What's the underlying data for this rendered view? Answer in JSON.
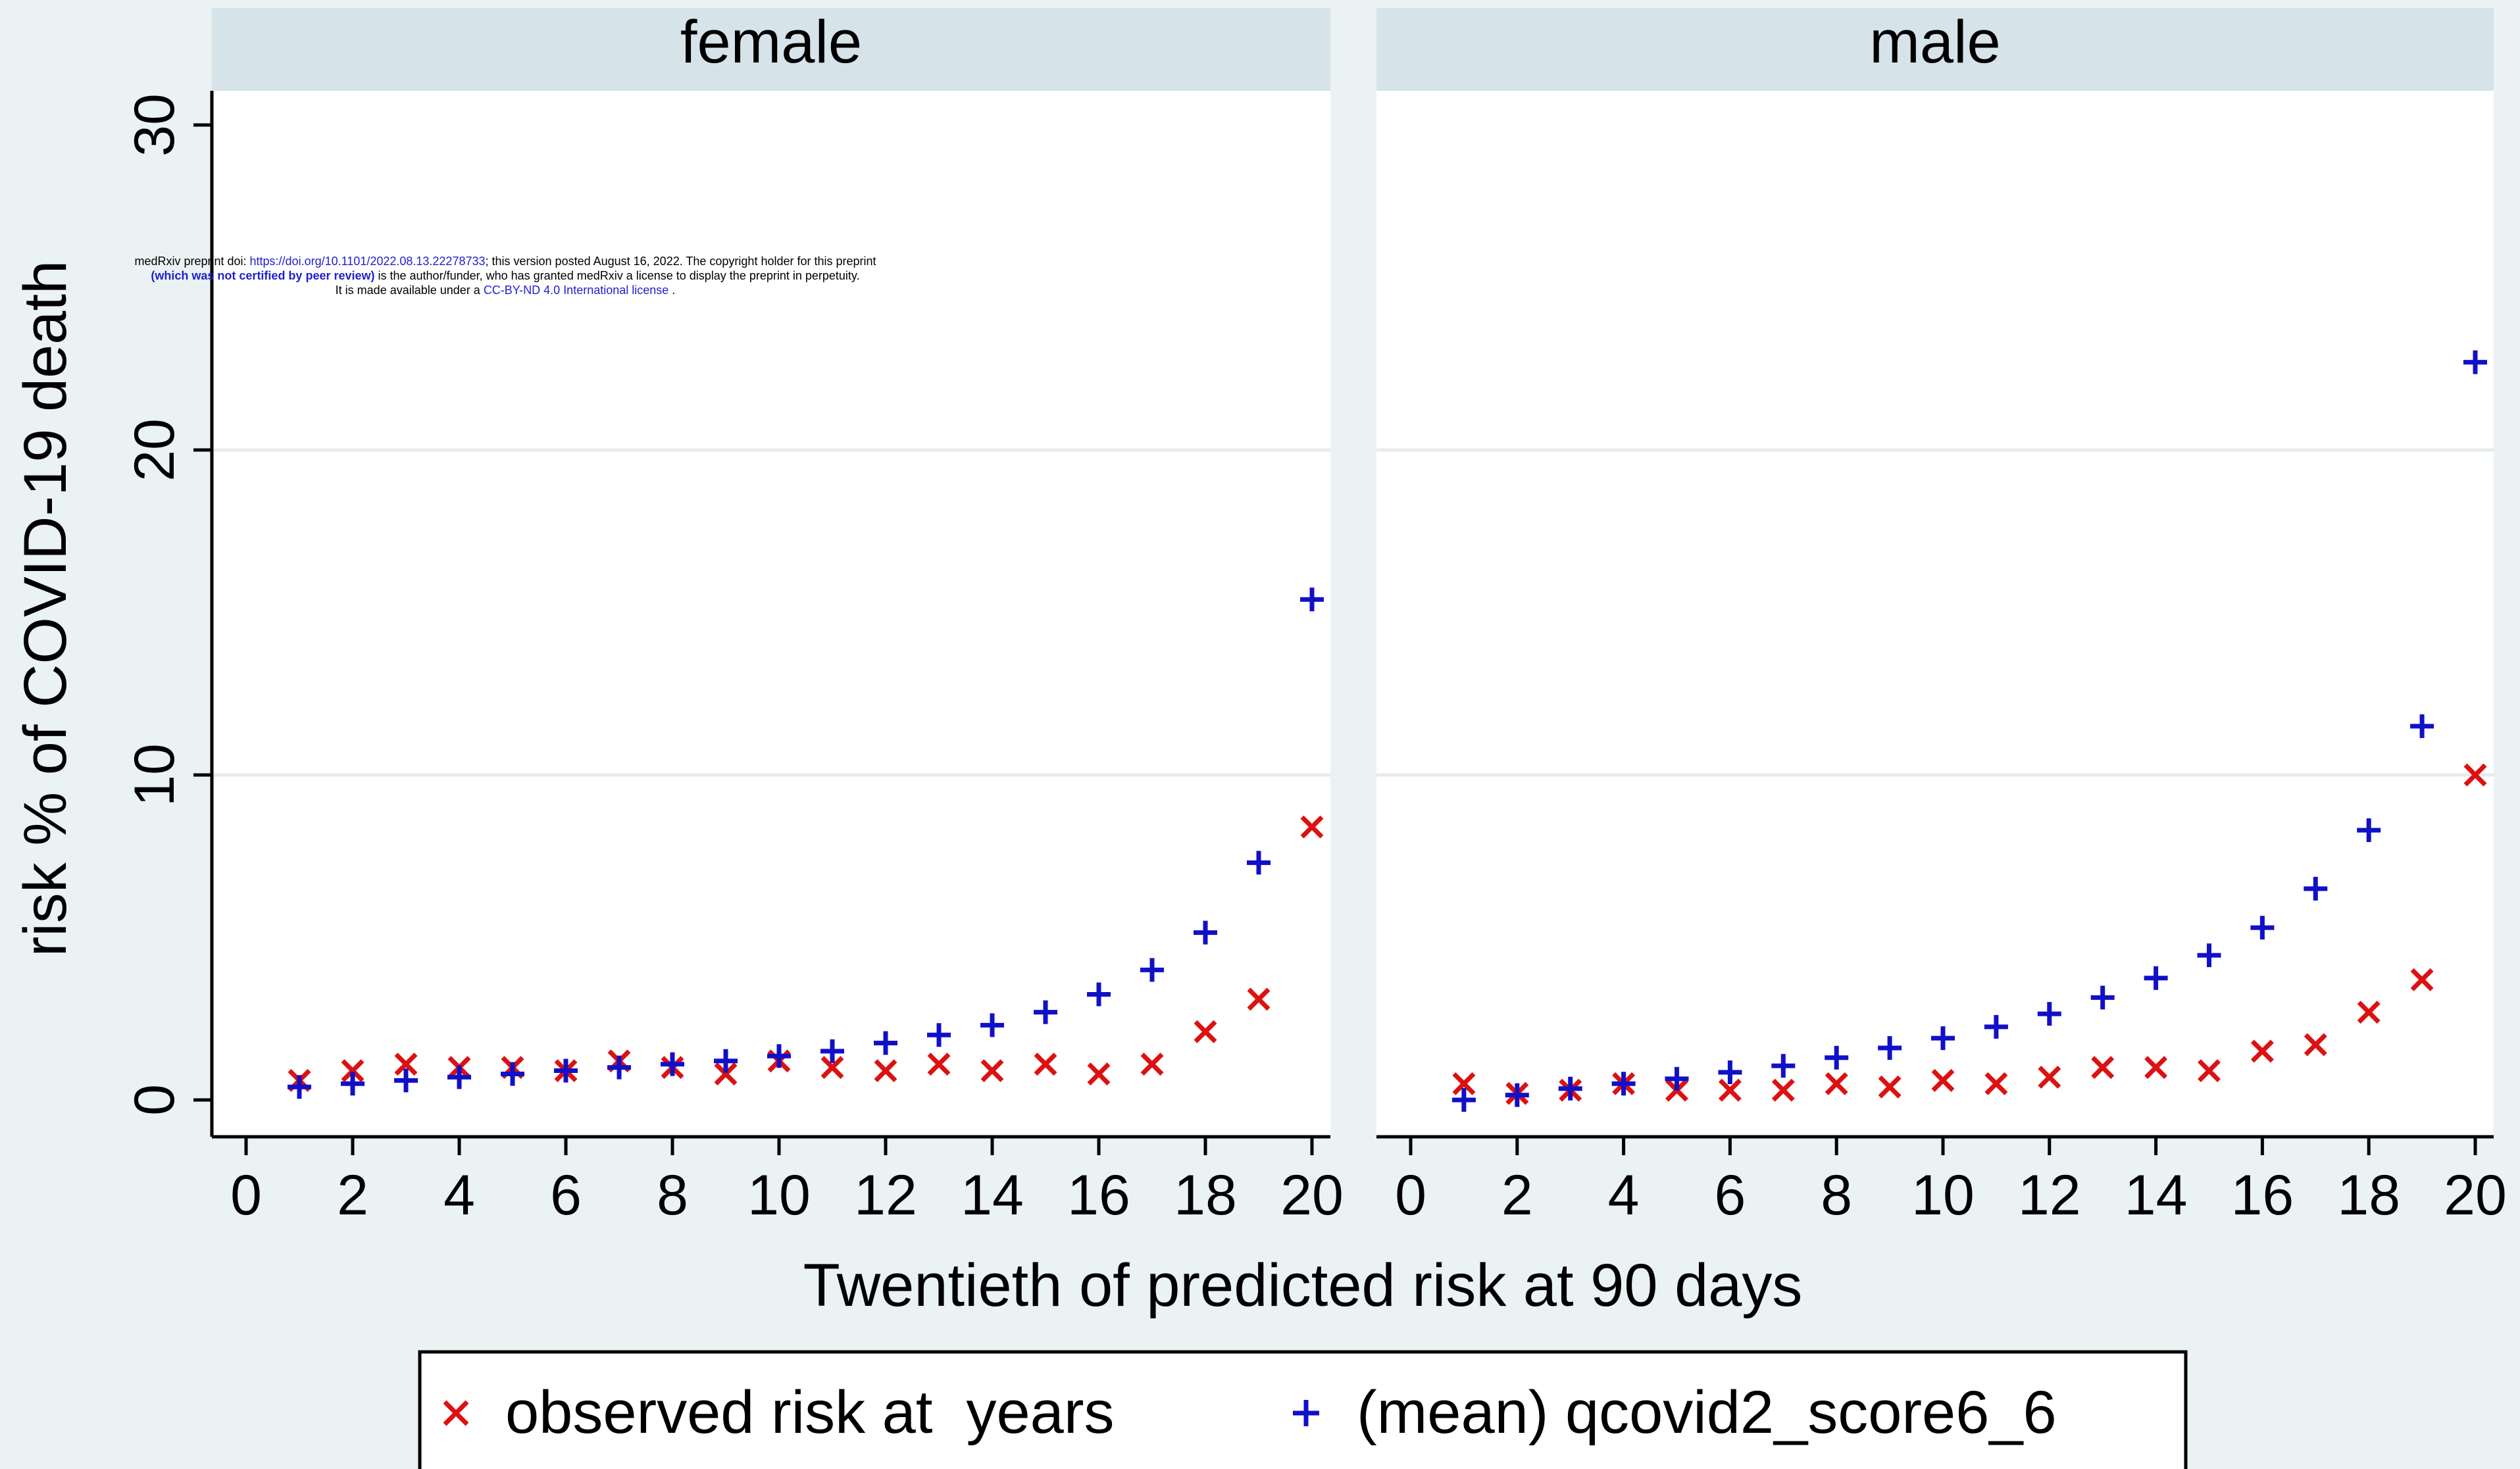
{
  "chart_data": {
    "type": "scatter",
    "ylabel": "risk % of COVID-19 death",
    "xlabel": "Twentieth of predicted risk at 90 days",
    "xlim": [
      0,
      20
    ],
    "ylim": [
      0,
      30
    ],
    "x_ticks": [
      "0",
      "2",
      "4",
      "6",
      "8",
      "10",
      "12",
      "14",
      "16",
      "18",
      "20"
    ],
    "y_ticks": [
      "0",
      "10",
      "20",
      "30"
    ],
    "grid": "horizontal",
    "legend_position": "bottom",
    "series_styles": [
      {
        "name": "observed risk at  years",
        "marker": "x",
        "color": "#dd1111"
      },
      {
        "name": "(mean) qcovid2_score6_6",
        "marker": "+",
        "color": "#1010c8"
      }
    ],
    "panels": [
      {
        "title": "female",
        "x": [
          1,
          2,
          3,
          4,
          5,
          6,
          7,
          8,
          9,
          10,
          11,
          12,
          13,
          14,
          15,
          16,
          17,
          18,
          19,
          20
        ],
        "observed": [
          0.6,
          0.9,
          1.1,
          1.0,
          1.0,
          0.9,
          1.2,
          1.0,
          0.8,
          1.2,
          1.0,
          0.9,
          1.1,
          0.9,
          1.1,
          0.8,
          1.1,
          2.1,
          3.1,
          8.4
        ],
        "predicted": [
          0.4,
          0.5,
          0.6,
          0.7,
          0.8,
          0.9,
          1.0,
          1.1,
          1.2,
          1.35,
          1.5,
          1.75,
          2.0,
          2.3,
          2.7,
          3.25,
          4.0,
          5.15,
          7.3,
          15.4
        ]
      },
      {
        "title": "male",
        "x": [
          1,
          2,
          3,
          4,
          5,
          6,
          7,
          8,
          9,
          10,
          11,
          12,
          13,
          14,
          15,
          16,
          17,
          18,
          19,
          20
        ],
        "observed": [
          0.5,
          0.2,
          0.3,
          0.5,
          0.3,
          0.3,
          0.3,
          0.5,
          0.4,
          0.6,
          0.5,
          0.7,
          1.0,
          1.0,
          0.9,
          1.5,
          1.7,
          2.7,
          3.7,
          10.0
        ],
        "predicted": [
          0.0,
          0.15,
          0.35,
          0.5,
          0.65,
          0.85,
          1.05,
          1.3,
          1.6,
          1.9,
          2.25,
          2.65,
          3.15,
          3.75,
          4.45,
          5.3,
          6.5,
          8.3,
          11.5,
          22.7
        ]
      }
    ]
  },
  "notice": {
    "line1_a": "medRxiv preprint doi: ",
    "line1_link": "https://doi.org/10.1101/2022.08.13.22278733",
    "line1_b": "; this version posted August 16, 2022. The copyright holder for this preprint",
    "line2_bold": "(which was not certified by peer review)",
    "line2_b": " is the author/funder, who has granted medRxiv a license to display the preprint in perpetuity.",
    "line3_a": "It is made available under a ",
    "line3_link": "CC-BY-ND 4.0 International license",
    "line3_b": " ."
  }
}
